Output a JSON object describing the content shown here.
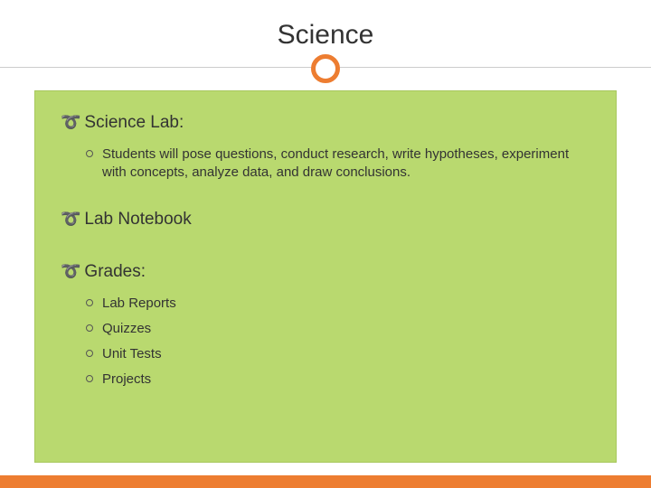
{
  "slide": {
    "title": "Science",
    "accent_color": "#ed7d31",
    "content_bg": "#b9d96f",
    "text_color": "#333333",
    "sections": [
      {
        "heading": "Science Lab:",
        "items": [
          "Students will pose questions, conduct research, write hypotheses, experiment with concepts, analyze data, and draw conclusions."
        ]
      },
      {
        "heading": "Lab Notebook",
        "items": []
      },
      {
        "heading": "Grades:",
        "items": [
          "Lab Reports",
          "Quizzes",
          "Unit Tests",
          "Projects"
        ]
      }
    ]
  }
}
